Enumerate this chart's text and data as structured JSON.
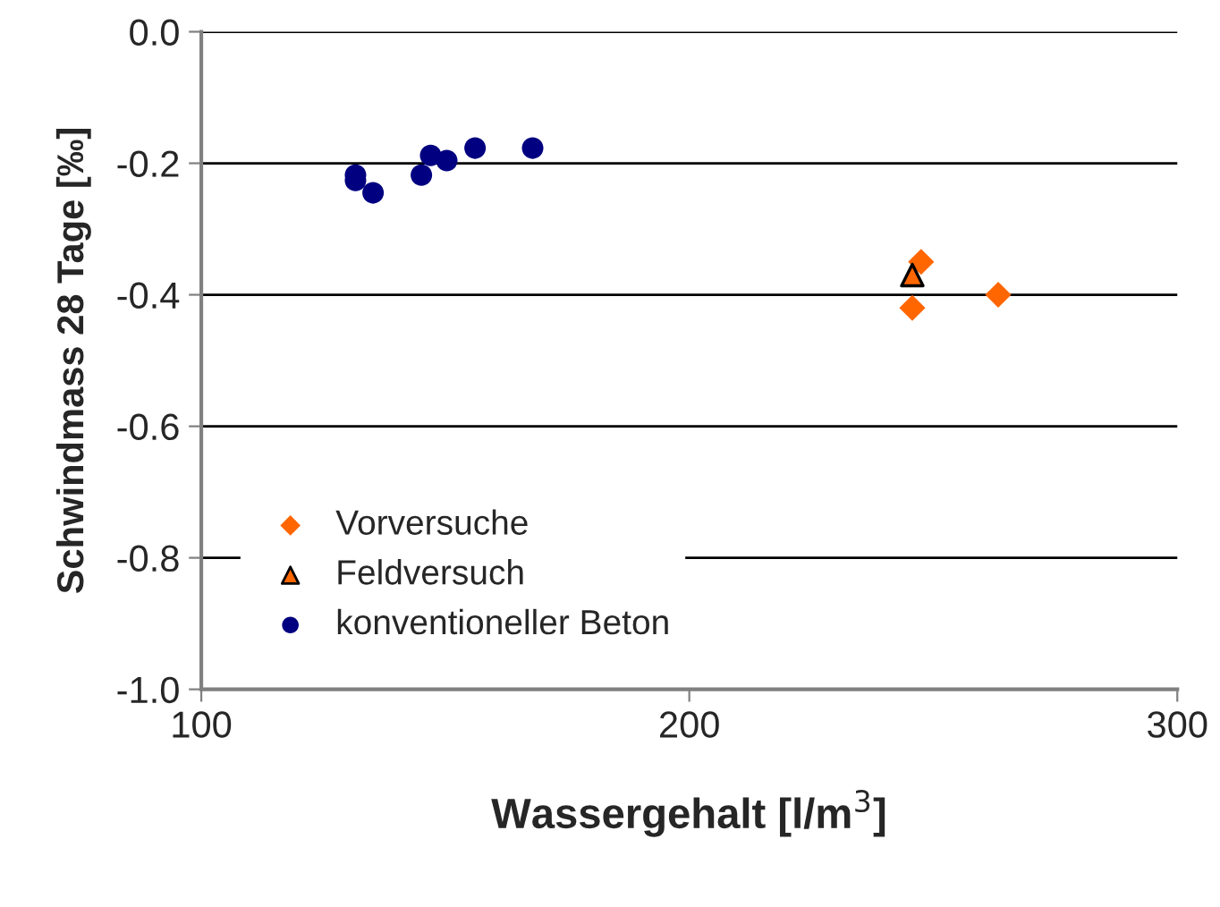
{
  "chart_data": {
    "type": "scatter",
    "xlabel": "Wassergehalt [l/m$^{3}$]",
    "ylabel": "Schwindmass 28 Tage [‰]",
    "xlim": [
      100,
      300
    ],
    "xticks": [
      100,
      200,
      300
    ],
    "ylim": [
      -1.0,
      0.0
    ],
    "yticks": [
      {
        "value": -1.0,
        "label": "-1.0"
      },
      {
        "value": -0.8,
        "label": "-0.8"
      },
      {
        "value": -0.6,
        "label": "-0.6"
      },
      {
        "value": -0.4,
        "label": "-0.4"
      },
      {
        "value": -0.2,
        "label": "-0.2"
      },
      {
        "value": 0.0,
        "label": "0.0"
      }
    ],
    "grid": "y",
    "legend": "bottom left",
    "series": [
      {
        "name": "Vorversuche",
        "color": "#ff6600",
        "marker": "diamond",
        "x": [
          247.5,
          245.7,
          263.3
        ],
        "values": [
          -0.35,
          -0.42,
          -0.4
        ]
      },
      {
        "name": "Feldversuch",
        "color": "#ff6600",
        "marker": "triangle",
        "x": [
          245.7
        ],
        "values": [
          -0.37
        ]
      },
      {
        "name": "konventioneller Beton",
        "color": "#000080",
        "marker": "circle",
        "x": [
          131.6,
          131.6,
          135.2,
          145.1,
          147.0,
          150.3,
          156.1,
          167.9
        ],
        "values": [
          -0.218,
          -0.226,
          -0.245,
          -0.218,
          -0.188,
          -0.196,
          -0.177,
          -0.177
        ]
      }
    ]
  }
}
